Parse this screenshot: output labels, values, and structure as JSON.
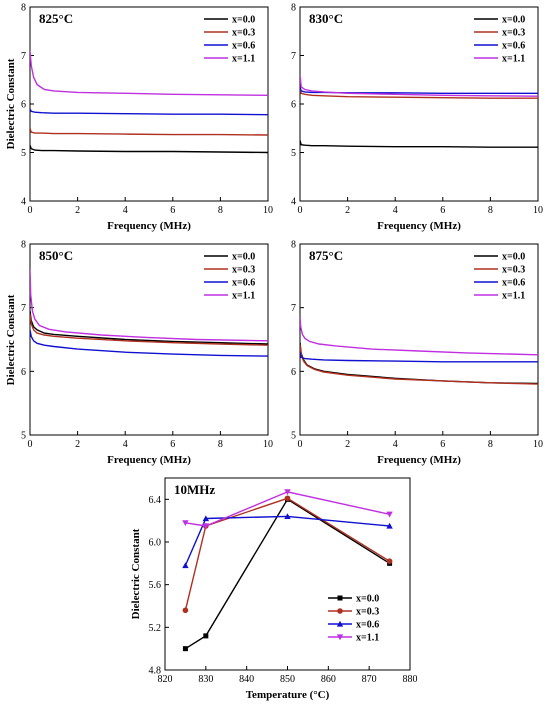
{
  "chart_data": [
    {
      "type": "line",
      "title": "825°C",
      "xlabel": "Frequency (MHz)",
      "ylabel": "Dielectric Constant",
      "xlim": [
        0,
        10
      ],
      "ylim": [
        4,
        8
      ],
      "xticks": [
        "0",
        "2",
        "4",
        "6",
        "8",
        "10"
      ],
      "yticks": [
        "4",
        "5",
        "6",
        "7",
        "8"
      ],
      "legend": "top-right",
      "series": [
        {
          "name": "x=0.0",
          "color": "#000000",
          "x": [
            0,
            0.05,
            0.2,
            0.5,
            1,
            2,
            4,
            6,
            8,
            10
          ],
          "y": [
            5.15,
            5.08,
            5.05,
            5.04,
            5.04,
            5.03,
            5.02,
            5.02,
            5.01,
            5.0
          ]
        },
        {
          "name": "x=0.3",
          "color": "#b03020",
          "x": [
            0,
            0.05,
            0.2,
            0.5,
            1,
            2,
            4,
            6,
            8,
            10
          ],
          "y": [
            5.5,
            5.42,
            5.4,
            5.4,
            5.39,
            5.39,
            5.38,
            5.37,
            5.37,
            5.36
          ]
        },
        {
          "name": "x=0.6",
          "color": "#1010d0",
          "x": [
            0,
            0.05,
            0.2,
            0.5,
            1,
            2,
            4,
            6,
            8,
            10
          ],
          "y": [
            5.9,
            5.85,
            5.83,
            5.82,
            5.81,
            5.81,
            5.8,
            5.79,
            5.79,
            5.78
          ]
        },
        {
          "name": "x=1.1",
          "color": "#c030e0",
          "x": [
            0,
            0.05,
            0.15,
            0.3,
            0.6,
            1,
            2,
            4,
            6,
            8,
            10
          ],
          "y": [
            7.1,
            6.8,
            6.55,
            6.4,
            6.3,
            6.27,
            6.24,
            6.22,
            6.2,
            6.19,
            6.18
          ]
        }
      ]
    },
    {
      "type": "line",
      "title": "830°C",
      "xlabel": "Frequency (MHz)",
      "ylabel": "",
      "xlim": [
        0,
        10
      ],
      "ylim": [
        4,
        8
      ],
      "xticks": [
        "0",
        "2",
        "4",
        "6",
        "8",
        "10"
      ],
      "yticks": [
        "4",
        "5",
        "6",
        "7",
        "8"
      ],
      "legend": "top-right",
      "series": [
        {
          "name": "x=0.0",
          "color": "#000000",
          "x": [
            0,
            0.05,
            0.2,
            0.5,
            1,
            2,
            4,
            6,
            8,
            10
          ],
          "y": [
            5.25,
            5.16,
            5.15,
            5.14,
            5.14,
            5.13,
            5.12,
            5.12,
            5.11,
            5.11
          ]
        },
        {
          "name": "x=0.3",
          "color": "#b03020",
          "x": [
            0,
            0.05,
            0.2,
            0.5,
            1,
            2,
            4,
            6,
            8,
            10
          ],
          "y": [
            6.3,
            6.22,
            6.2,
            6.18,
            6.17,
            6.15,
            6.14,
            6.13,
            6.12,
            6.12
          ]
        },
        {
          "name": "x=0.6",
          "color": "#1010d0",
          "x": [
            0,
            0.05,
            0.2,
            0.5,
            1,
            2,
            4,
            6,
            8,
            10
          ],
          "y": [
            6.35,
            6.27,
            6.25,
            6.24,
            6.24,
            6.23,
            6.23,
            6.22,
            6.22,
            6.22
          ]
        },
        {
          "name": "x=1.1",
          "color": "#c030e0",
          "x": [
            0,
            0.05,
            0.2,
            0.5,
            1,
            2,
            4,
            6,
            8,
            10
          ],
          "y": [
            6.6,
            6.35,
            6.3,
            6.27,
            6.25,
            6.22,
            6.2,
            6.18,
            6.17,
            6.16
          ]
        }
      ]
    },
    {
      "type": "line",
      "title": "850°C",
      "xlabel": "Frequency (MHz)",
      "ylabel": "Dielectric Constant",
      "xlim": [
        0,
        10
      ],
      "ylim": [
        5,
        8
      ],
      "xticks": [
        "0",
        "2",
        "4",
        "6",
        "8",
        "10"
      ],
      "yticks": [
        "5",
        "6",
        "7",
        "8"
      ],
      "legend": "top-right",
      "series": [
        {
          "name": "x=0.0",
          "color": "#000000",
          "x": [
            0,
            0.05,
            0.15,
            0.3,
            0.6,
            1,
            2,
            4,
            6,
            8,
            10
          ],
          "y": [
            6.95,
            6.8,
            6.7,
            6.65,
            6.6,
            6.58,
            6.55,
            6.5,
            6.47,
            6.45,
            6.43
          ]
        },
        {
          "name": "x=0.3",
          "color": "#b03020",
          "x": [
            0,
            0.05,
            0.15,
            0.3,
            0.6,
            1,
            2,
            4,
            6,
            8,
            10
          ],
          "y": [
            6.9,
            6.75,
            6.65,
            6.6,
            6.57,
            6.55,
            6.52,
            6.48,
            6.45,
            6.43,
            6.41
          ]
        },
        {
          "name": "x=0.6",
          "color": "#1010d0",
          "x": [
            0,
            0.05,
            0.15,
            0.3,
            0.6,
            1,
            2,
            4,
            6,
            8,
            10
          ],
          "y": [
            6.65,
            6.55,
            6.48,
            6.44,
            6.41,
            6.39,
            6.35,
            6.3,
            6.27,
            6.25,
            6.24
          ]
        },
        {
          "name": "x=1.1",
          "color": "#c030e0",
          "x": [
            0,
            0.03,
            0.1,
            0.2,
            0.4,
            0.8,
            1.5,
            3,
            5,
            7,
            10
          ],
          "y": [
            7.6,
            7.2,
            6.95,
            6.82,
            6.72,
            6.66,
            6.62,
            6.57,
            6.53,
            6.5,
            6.48
          ]
        }
      ]
    },
    {
      "type": "line",
      "title": "875°C",
      "xlabel": "Frequency (MHz)",
      "ylabel": "",
      "xlim": [
        0,
        10
      ],
      "ylim": [
        5,
        8
      ],
      "xticks": [
        "0",
        "2",
        "4",
        "6",
        "8",
        "10"
      ],
      "yticks": [
        "5",
        "6",
        "7",
        "8"
      ],
      "legend": "top-right",
      "series": [
        {
          "name": "x=0.0",
          "color": "#000000",
          "x": [
            0,
            0.05,
            0.15,
            0.3,
            0.6,
            1,
            2,
            4,
            6,
            8,
            10
          ],
          "y": [
            6.45,
            6.28,
            6.18,
            6.1,
            6.04,
            6.0,
            5.95,
            5.89,
            5.85,
            5.82,
            5.81
          ]
        },
        {
          "name": "x=0.3",
          "color": "#b03020",
          "x": [
            0,
            0.05,
            0.15,
            0.3,
            0.6,
            1,
            2,
            4,
            6,
            8,
            10
          ],
          "y": [
            6.42,
            6.26,
            6.16,
            6.09,
            6.03,
            5.99,
            5.94,
            5.88,
            5.85,
            5.82,
            5.8
          ]
        },
        {
          "name": "x=0.6",
          "color": "#1010d0",
          "x": [
            0,
            0.05,
            0.2,
            0.5,
            1,
            2,
            4,
            6,
            8,
            10
          ],
          "y": [
            6.3,
            6.22,
            6.2,
            6.19,
            6.18,
            6.17,
            6.16,
            6.15,
            6.15,
            6.15
          ]
        },
        {
          "name": "x=1.1",
          "color": "#c030e0",
          "x": [
            0,
            0.03,
            0.1,
            0.2,
            0.4,
            0.8,
            1.5,
            3,
            5,
            7,
            10
          ],
          "y": [
            6.85,
            6.7,
            6.58,
            6.52,
            6.47,
            6.43,
            6.4,
            6.35,
            6.32,
            6.29,
            6.26
          ]
        }
      ]
    },
    {
      "type": "line",
      "title": "10MHz",
      "xlabel": "Temperature (°C)",
      "ylabel": "Dielectric Constant",
      "xlim": [
        820,
        880
      ],
      "ylim": [
        4.8,
        6.6
      ],
      "xticks": [
        "820",
        "830",
        "840",
        "850",
        "860",
        "870",
        "880"
      ],
      "yticks": [
        "4.8",
        "5.2",
        "5.6",
        "6.0",
        "6.4"
      ],
      "legend": "bottom-right",
      "series": [
        {
          "name": "x=0.0",
          "color": "#000000",
          "marker": "square",
          "x": [
            825,
            830,
            850,
            875
          ],
          "y": [
            5.0,
            5.12,
            6.4,
            5.8
          ]
        },
        {
          "name": "x=0.3",
          "color": "#b03020",
          "marker": "circle",
          "x": [
            825,
            830,
            850,
            875
          ],
          "y": [
            5.36,
            6.15,
            6.41,
            5.82
          ]
        },
        {
          "name": "x=0.6",
          "color": "#1010d0",
          "marker": "triangle-up",
          "x": [
            825,
            830,
            850,
            875
          ],
          "y": [
            5.78,
            6.22,
            6.24,
            6.15
          ]
        },
        {
          "name": "x=1.1",
          "color": "#c030e0",
          "marker": "triangle-down",
          "x": [
            825,
            830,
            850,
            875
          ],
          "y": [
            6.18,
            6.15,
            6.47,
            6.26
          ]
        }
      ]
    }
  ]
}
